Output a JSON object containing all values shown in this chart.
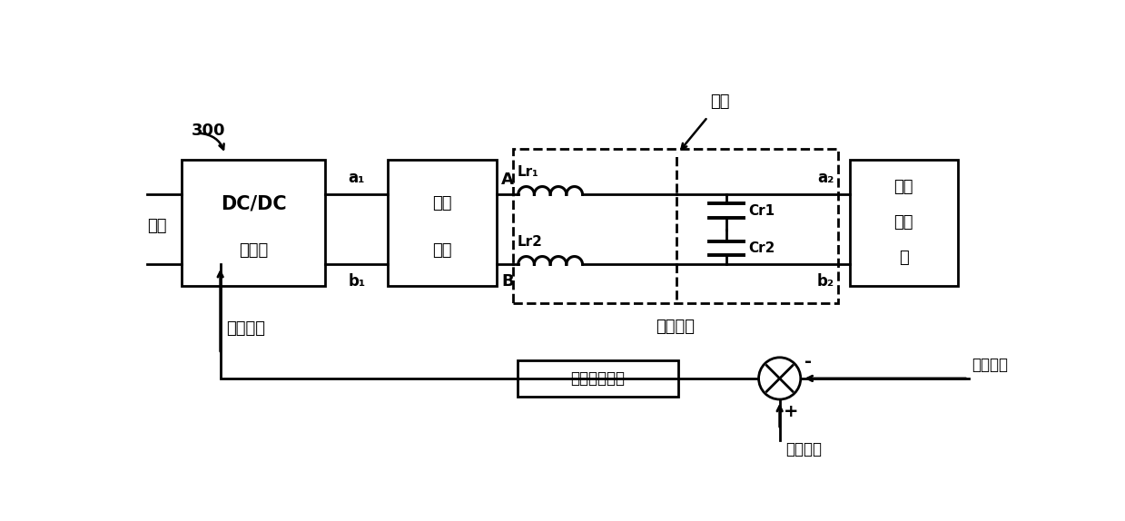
{
  "bg_color": "#ffffff",
  "line_color": "#000000",
  "fig_width": 12.39,
  "fig_height": 5.74,
  "label_300": "300",
  "label_input": "输入",
  "label_dcdc_line1": "DC/DC",
  "label_dcdc_line2": "变流器",
  "label_yuanbian_line1": "原边",
  "label_yuanbian_line2": "拓扑",
  "label_fbian_line1": "副边",
  "label_fbian_line2": "整流",
  "label_fbian_line3": "器",
  "label_Lr1": "Lr₁",
  "label_Lr2": "Lr2",
  "label_Cr1": "Cr1",
  "label_Cr2": "Cr2",
  "label_a1": "a₁",
  "label_b1": "b₁",
  "label_A": "A",
  "label_B": "B",
  "label_a2": "a₂",
  "label_b2": "b₂",
  "label_isolation": "隔离",
  "label_resonant": "谐振网络",
  "label_control": "控制信号",
  "label_feedback_box": "反馈补偿环节",
  "label_feedback_sig": "反馈信号",
  "label_ref_sig": "基准信号"
}
